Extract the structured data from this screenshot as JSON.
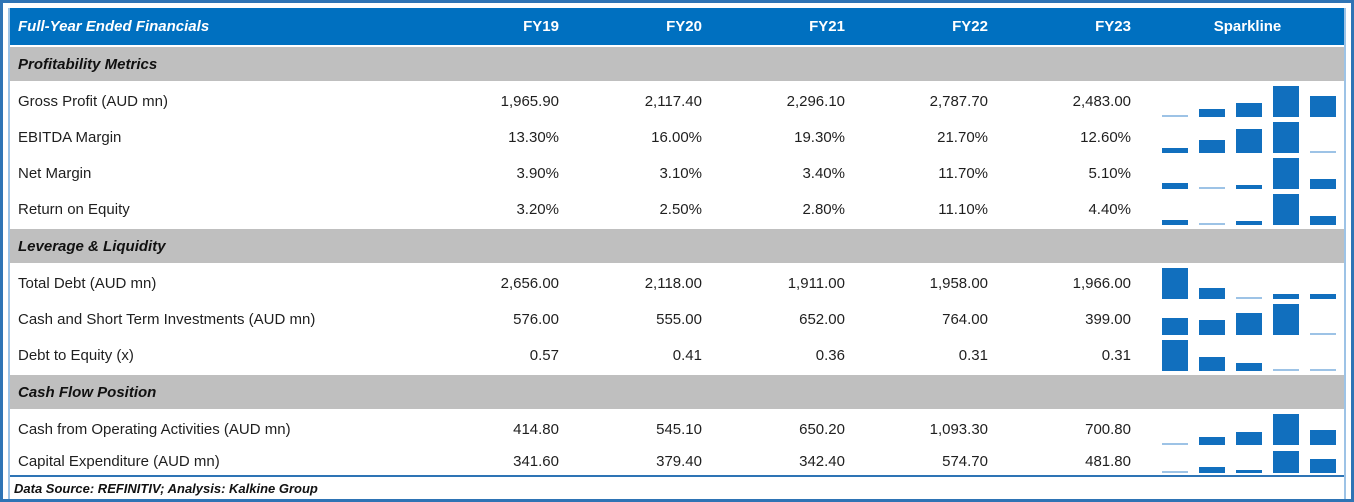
{
  "header": {
    "title": "Full-Year Ended Financials",
    "columns": [
      "FY19",
      "FY20",
      "FY21",
      "FY22",
      "FY23"
    ],
    "sparkline_label": "Sparkline"
  },
  "footer": {
    "text": "Data Source: REFINITIV; Analysis: Kalkine Group"
  },
  "colors": {
    "header_bg": "#0070C0",
    "header_text": "#FFFFFF",
    "section_bg": "#BFBFBF",
    "sparkline_bar": "#116FBE",
    "sparkline_bar_low": "#9DC3E6",
    "frame_border": "#2E74B5",
    "side_border": "#9DC3E6"
  },
  "chart_data": {
    "type": "table",
    "title": "Full-Year Ended Financials",
    "columns": [
      "FY19",
      "FY20",
      "FY21",
      "FY22",
      "FY23",
      "Sparkline"
    ],
    "sparkline_type": "bar",
    "sections": [
      {
        "title": "Profitability Metrics",
        "rows": [
          {
            "label": "Gross Profit (AUD mn)",
            "display": [
              "1,965.90",
              "2,117.40",
              "2,296.10",
              "2,787.70",
              "2,483.00"
            ],
            "values": [
              1965.9,
              2117.4,
              2296.1,
              2787.7,
              2483.0
            ]
          },
          {
            "label": "EBITDA Margin",
            "display": [
              "13.30%",
              "16.00%",
              "19.30%",
              "21.70%",
              "12.60%"
            ],
            "values": [
              13.3,
              16.0,
              19.3,
              21.7,
              12.6
            ]
          },
          {
            "label": "Net Margin",
            "display": [
              "3.90%",
              "3.10%",
              "3.40%",
              "11.70%",
              "5.10%"
            ],
            "values": [
              3.9,
              3.1,
              3.4,
              11.7,
              5.1
            ]
          },
          {
            "label": "Return on Equity",
            "display": [
              "3.20%",
              "2.50%",
              "2.80%",
              "11.10%",
              "4.40%"
            ],
            "values": [
              3.2,
              2.5,
              2.8,
              11.1,
              4.4
            ]
          }
        ]
      },
      {
        "title": "Leverage & Liquidity",
        "rows": [
          {
            "label": "Total Debt (AUD mn)",
            "display": [
              "2,656.00",
              "2,118.00",
              "1,911.00",
              "1,958.00",
              "1,966.00"
            ],
            "values": [
              2656.0,
              2118.0,
              1911.0,
              1958.0,
              1966.0
            ]
          },
          {
            "label": "Cash and Short Term Investments (AUD mn)",
            "display": [
              "576.00",
              "555.00",
              "652.00",
              "764.00",
              "399.00"
            ],
            "values": [
              576.0,
              555.0,
              652.0,
              764.0,
              399.0
            ]
          },
          {
            "label": "Debt to Equity (x)",
            "display": [
              "0.57",
              "0.41",
              "0.36",
              "0.31",
              "0.31"
            ],
            "values": [
              0.57,
              0.41,
              0.36,
              0.31,
              0.31
            ]
          }
        ]
      },
      {
        "title": "Cash Flow Position",
        "rows": [
          {
            "label": "Cash from Operating Activities (AUD mn)",
            "display": [
              "414.80",
              "545.10",
              "650.20",
              "1,093.30",
              "700.80"
            ],
            "values": [
              414.8,
              545.1,
              650.2,
              1093.3,
              700.8
            ]
          },
          {
            "label": "Capital Expenditure (AUD mn)",
            "display": [
              "341.60",
              "379.40",
              "342.40",
              "574.70",
              "481.80"
            ],
            "values": [
              341.6,
              379.4,
              342.4,
              574.7,
              481.8
            ]
          }
        ]
      }
    ]
  }
}
